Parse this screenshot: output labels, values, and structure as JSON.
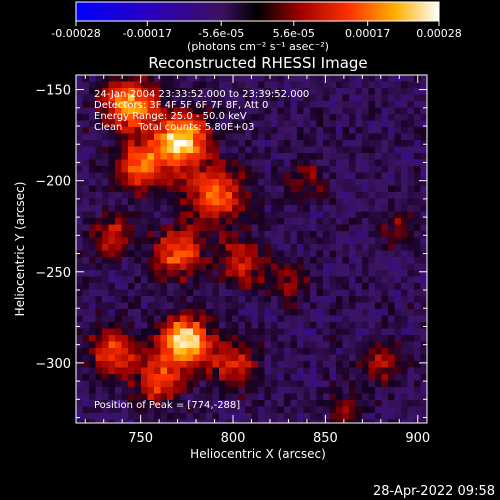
{
  "chart_data": {
    "type": "heatmap",
    "title": "Reconstructed RHESSI Image",
    "xlabel": "Heliocentric X (arcsec)",
    "ylabel": "Heliocentric Y (arcsec)",
    "xlim": [
      715,
      905
    ],
    "ylim": [
      -333,
      -142
    ],
    "x_ticks": [
      750,
      800,
      850,
      900
    ],
    "y_ticks": [
      -150,
      -200,
      -250,
      -300
    ],
    "colorbar": {
      "ticks": [
        "-0.00028",
        "-0.00017",
        "-5.6e-05",
        "5.6e-05",
        "0.00017",
        "0.00028"
      ],
      "label": "(photons cm⁻² s⁻¹ asec⁻²)",
      "range": [
        -0.00028,
        0.00028
      ]
    },
    "annotations": [
      "24-Jan-2004 23:33:52.000 to 23:39:52.000",
      "Detectors: 3F 4F 5F 6F 7F 8F, Att 0",
      "Energy Range: 25.0 - 50.0 keV",
      "Clean     Total counts: 5.80E+03"
    ],
    "peak_label": "Position of Peak = [774,-288]",
    "peak": {
      "x": 774,
      "y": -288
    },
    "sources": [
      {
        "x": 744,
        "y": -158,
        "sigma": 10,
        "amp": 1.0
      },
      {
        "x": 772,
        "y": -178,
        "sigma": 10,
        "amp": 1.2
      },
      {
        "x": 750,
        "y": -192,
        "sigma": 9,
        "amp": 0.9
      },
      {
        "x": 790,
        "y": -208,
        "sigma": 12,
        "amp": 0.75
      },
      {
        "x": 770,
        "y": -240,
        "sigma": 9,
        "amp": 0.8
      },
      {
        "x": 735,
        "y": -230,
        "sigma": 8,
        "amp": 0.6
      },
      {
        "x": 805,
        "y": -245,
        "sigma": 9,
        "amp": 0.55
      },
      {
        "x": 735,
        "y": -295,
        "sigma": 9,
        "amp": 0.7
      },
      {
        "x": 774,
        "y": -288,
        "sigma": 9,
        "amp": 1.3
      },
      {
        "x": 760,
        "y": -310,
        "sigma": 9,
        "amp": 0.7
      },
      {
        "x": 800,
        "y": -300,
        "sigma": 9,
        "amp": 0.6
      },
      {
        "x": 830,
        "y": -255,
        "sigma": 8,
        "amp": 0.35
      },
      {
        "x": 840,
        "y": -200,
        "sigma": 8,
        "amp": 0.35
      },
      {
        "x": 880,
        "y": -300,
        "sigma": 8,
        "amp": 0.45
      },
      {
        "x": 890,
        "y": -225,
        "sigma": 7,
        "amp": 0.35
      },
      {
        "x": 860,
        "y": -325,
        "sigma": 8,
        "amp": 0.35
      }
    ],
    "timestamp": "28-Apr-2022 09:58"
  }
}
